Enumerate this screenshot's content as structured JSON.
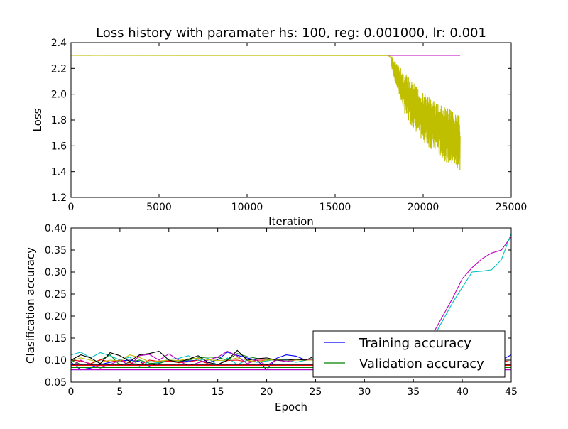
{
  "chart_data": [
    {
      "type": "line",
      "title": "Loss history with paramater hs: 100, reg: 0.001000, lr: 0.001",
      "xlabel": "Iteration",
      "ylabel": "Loss",
      "xlim": [
        0,
        25000
      ],
      "ylim": [
        1.2,
        2.4
      ],
      "xticks": [
        0,
        5000,
        10000,
        15000,
        20000,
        25000
      ],
      "yticks": [
        1.2,
        1.4,
        1.6,
        1.8,
        2.0,
        2.2,
        2.4
      ],
      "xtick_labels": [
        "0",
        "5000",
        "10000",
        "15000",
        "20000",
        "25000"
      ],
      "ytick_labels": [
        "1.2",
        "1.4",
        "1.6",
        "1.8",
        "2.0",
        "2.2",
        "2.4"
      ],
      "series": [
        {
          "color": "#000000",
          "x": [
            0,
            18000
          ],
          "y": [
            2.303,
            2.302
          ]
        },
        {
          "color": "#00bfbf",
          "x": [
            0,
            18000
          ],
          "y": [
            2.302,
            2.302
          ]
        },
        {
          "color": "#bf00bf",
          "x": [
            0,
            22100
          ],
          "y": [
            2.301,
            2.301
          ]
        },
        {
          "color": "#bfbf00",
          "x": [
            0,
            18000,
            18300,
            18600,
            19000,
            19500,
            20000,
            20500,
            21000,
            21500,
            22000,
            22100
          ],
          "y": [
            2.301,
            2.3,
            2.22,
            2.05,
            1.95,
            1.88,
            1.82,
            1.78,
            1.72,
            1.68,
            1.62,
            1.63
          ],
          "noise_start": 18200,
          "band_high": [
            2.3,
            2.22,
            2.15,
            2.08,
            2.02,
            1.98,
            1.94,
            1.9,
            1.88,
            1.82
          ],
          "band_low": [
            2.2,
            1.98,
            1.8,
            1.72,
            1.64,
            1.58,
            1.54,
            1.48,
            1.44,
            1.4
          ]
        }
      ]
    },
    {
      "type": "line",
      "title": "",
      "xlabel": "Epoch",
      "ylabel": "Clasification accuracy",
      "xlim": [
        0,
        45
      ],
      "ylim": [
        0.05,
        0.4
      ],
      "xticks": [
        0,
        5,
        10,
        15,
        20,
        25,
        30,
        35,
        40,
        45
      ],
      "yticks": [
        0.05,
        0.1,
        0.15,
        0.2,
        0.25,
        0.3,
        0.35,
        0.4
      ],
      "xtick_labels": [
        "0",
        "5",
        "10",
        "15",
        "20",
        "25",
        "30",
        "35",
        "40",
        "45"
      ],
      "ytick_labels": [
        "0.05",
        "0.10",
        "0.15",
        "0.20",
        "0.25",
        "0.30",
        "0.35",
        "0.40"
      ],
      "legend": {
        "placement": "lower-right",
        "entries": [
          {
            "label": "Training accuracy",
            "color": "#0000ff"
          },
          {
            "label": "Validation accuracy",
            "color": "#008000"
          }
        ]
      },
      "series": [
        {
          "color": "#bf00bf",
          "x": [
            37,
            38,
            39,
            40,
            41,
            42,
            43,
            44,
            45
          ],
          "y": [
            0.16,
            0.2,
            0.24,
            0.285,
            0.31,
            0.33,
            0.343,
            0.35,
            0.38
          ]
        },
        {
          "color": "#00bfbf",
          "x": [
            37,
            38,
            39,
            40,
            41,
            42,
            43,
            44,
            45
          ],
          "y": [
            0.15,
            0.19,
            0.23,
            0.265,
            0.3,
            0.302,
            0.305,
            0.328,
            0.388
          ]
        },
        {
          "color": "#0000ff",
          "x": [
            0,
            1,
            2,
            3,
            4,
            5,
            6,
            7,
            8,
            9,
            10,
            11,
            12,
            13,
            14,
            15,
            16,
            17,
            18,
            19,
            20,
            21,
            22,
            23,
            24,
            25,
            26,
            27,
            28,
            29,
            30,
            31,
            32,
            33,
            34,
            35,
            36,
            37,
            38,
            39,
            40,
            41,
            42,
            43,
            44,
            45
          ],
          "y": [
            0.095,
            0.078,
            0.082,
            0.09,
            0.095,
            0.098,
            0.1,
            0.097,
            0.085,
            0.093,
            0.1,
            0.095,
            0.098,
            0.1,
            0.094,
            0.101,
            0.118,
            0.111,
            0.105,
            0.1,
            0.078,
            0.104,
            0.112,
            0.109,
            0.1,
            0.104,
            0.1,
            0.1,
            0.1,
            0.1,
            0.1,
            0.1,
            0.1,
            0.1,
            0.1,
            0.1,
            0.1,
            0.1,
            0.1,
            0.1,
            0.1,
            0.1,
            0.1,
            0.1,
            0.1,
            0.112
          ]
        },
        {
          "color": "#008000",
          "x": [
            0,
            1,
            2,
            3,
            4,
            5,
            6,
            7,
            8,
            9,
            10,
            11,
            12,
            13,
            14,
            15,
            16,
            17,
            18,
            19,
            20,
            21,
            22,
            23,
            24,
            25,
            26,
            27,
            28,
            29,
            30,
            31,
            32,
            33,
            34,
            35,
            36,
            37,
            38,
            39,
            40,
            41,
            42,
            43,
            44,
            45
          ],
          "y": [
            0.1,
            0.09,
            0.092,
            0.1,
            0.112,
            0.088,
            0.095,
            0.1,
            0.093,
            0.092,
            0.1,
            0.098,
            0.1,
            0.105,
            0.107,
            0.106,
            0.1,
            0.115,
            0.108,
            0.104,
            0.102,
            0.1,
            0.1,
            0.1,
            0.1,
            0.1,
            0.1,
            0.1,
            0.1,
            0.1,
            0.1,
            0.1,
            0.1,
            0.1,
            0.1,
            0.1,
            0.1,
            0.1,
            0.1,
            0.1,
            0.1,
            0.1,
            0.1,
            0.1,
            0.1,
            0.1
          ]
        },
        {
          "color": "#ff0000",
          "x": [
            0,
            1,
            2,
            3,
            4,
            5,
            6,
            7,
            8,
            9,
            10,
            11,
            12,
            13,
            14,
            15,
            16,
            17,
            18,
            19,
            20,
            21,
            22,
            23,
            24,
            25,
            26,
            27,
            28,
            29,
            30,
            31,
            32,
            33,
            34,
            35,
            36,
            37,
            38,
            39,
            40,
            41,
            42,
            43,
            44,
            45
          ],
          "y": [
            0.1,
            0.098,
            0.092,
            0.101,
            0.096,
            0.1,
            0.094,
            0.089,
            0.1,
            0.097,
            0.098,
            0.094,
            0.096,
            0.1,
            0.092,
            0.09,
            0.099,
            0.1,
            0.096,
            0.1,
            0.1,
            0.1,
            0.1,
            0.1,
            0.1,
            0.1,
            0.1,
            0.1,
            0.1,
            0.1,
            0.1,
            0.1,
            0.1,
            0.1,
            0.1,
            0.1,
            0.1,
            0.1,
            0.1,
            0.1,
            0.1,
            0.1,
            0.1,
            0.1,
            0.1,
            0.095
          ]
        },
        {
          "color": "#00bfbf",
          "x": [
            0,
            1,
            2,
            3,
            4,
            5,
            6,
            7,
            8,
            9,
            10,
            11,
            12,
            13,
            14,
            15,
            16,
            17,
            18,
            19,
            20,
            21,
            22,
            23,
            24,
            25
          ],
          "y": [
            0.112,
            0.118,
            0.105,
            0.117,
            0.11,
            0.1,
            0.107,
            0.085,
            0.097,
            0.094,
            0.102,
            0.104,
            0.11,
            0.099,
            0.104,
            0.088,
            0.105,
            0.09,
            0.1,
            0.095,
            0.098,
            0.102,
            0.101,
            0.095,
            0.1,
            0.105
          ]
        },
        {
          "color": "#bf00bf",
          "x": [
            0,
            1,
            2,
            3,
            4,
            5,
            6,
            7,
            8,
            9,
            10,
            11,
            12,
            13,
            14,
            15,
            16,
            17,
            18,
            19,
            20,
            21,
            22,
            23,
            24,
            25
          ],
          "y": [
            0.085,
            0.1,
            0.09,
            0.082,
            0.09,
            0.1,
            0.088,
            0.11,
            0.113,
            0.1,
            0.114,
            0.1,
            0.086,
            0.094,
            0.1,
            0.107,
            0.12,
            0.109,
            0.092,
            0.1,
            0.088,
            0.1,
            0.097,
            0.1,
            0.102,
            0.1
          ]
        },
        {
          "color": "#bfbf00",
          "x": [
            0,
            1,
            2,
            3,
            4,
            5,
            6,
            7,
            8,
            9,
            10,
            11,
            12,
            13,
            14,
            15,
            16,
            17,
            18,
            19,
            20,
            21,
            22,
            23,
            24,
            25
          ],
          "y": [
            0.098,
            0.105,
            0.1,
            0.095,
            0.1,
            0.098,
            0.112,
            0.106,
            0.096,
            0.098,
            0.1,
            0.099,
            0.103,
            0.104,
            0.101,
            0.099,
            0.1,
            0.105,
            0.1,
            0.096,
            0.1,
            0.101,
            0.1,
            0.1,
            0.1,
            0.1
          ]
        },
        {
          "color": "#000000",
          "x": [
            0,
            1,
            2,
            3,
            4,
            5,
            6,
            7,
            8,
            9,
            10,
            11,
            12,
            13,
            14,
            15,
            16,
            17,
            18,
            19,
            20,
            21,
            22,
            23,
            24,
            25,
            26,
            27,
            28,
            29,
            30,
            31,
            32,
            33,
            34,
            35,
            36,
            37,
            38,
            39,
            40,
            41,
            42,
            43,
            44,
            45
          ],
          "y": [
            0.1,
            0.112,
            0.105,
            0.092,
            0.117,
            0.11,
            0.097,
            0.112,
            0.115,
            0.12,
            0.1,
            0.095,
            0.102,
            0.11,
            0.095,
            0.09,
            0.1,
            0.122,
            0.1,
            0.103,
            0.105,
            0.1,
            0.1,
            0.102,
            0.1,
            0.11,
            0.1,
            0.1,
            0.1,
            0.1,
            0.1,
            0.1,
            0.1,
            0.1,
            0.1,
            0.1,
            0.1,
            0.1,
            0.1,
            0.1,
            0.1,
            0.1,
            0.1,
            0.1,
            0.1,
            0.1
          ]
        },
        {
          "color": "#0000ff",
          "x": [
            0,
            45
          ],
          "y": [
            0.078,
            0.078
          ]
        },
        {
          "color": "#008000",
          "x": [
            0,
            45
          ],
          "y": [
            0.083,
            0.083
          ]
        },
        {
          "color": "#ff0000",
          "x": [
            0,
            45
          ],
          "y": [
            0.088,
            0.088
          ]
        },
        {
          "color": "#bf00bf",
          "x": [
            0,
            45
          ],
          "y": [
            0.078,
            0.078
          ]
        },
        {
          "color": "#000000",
          "x": [
            0,
            45
          ],
          "y": [
            0.09,
            0.09
          ]
        }
      ]
    }
  ]
}
